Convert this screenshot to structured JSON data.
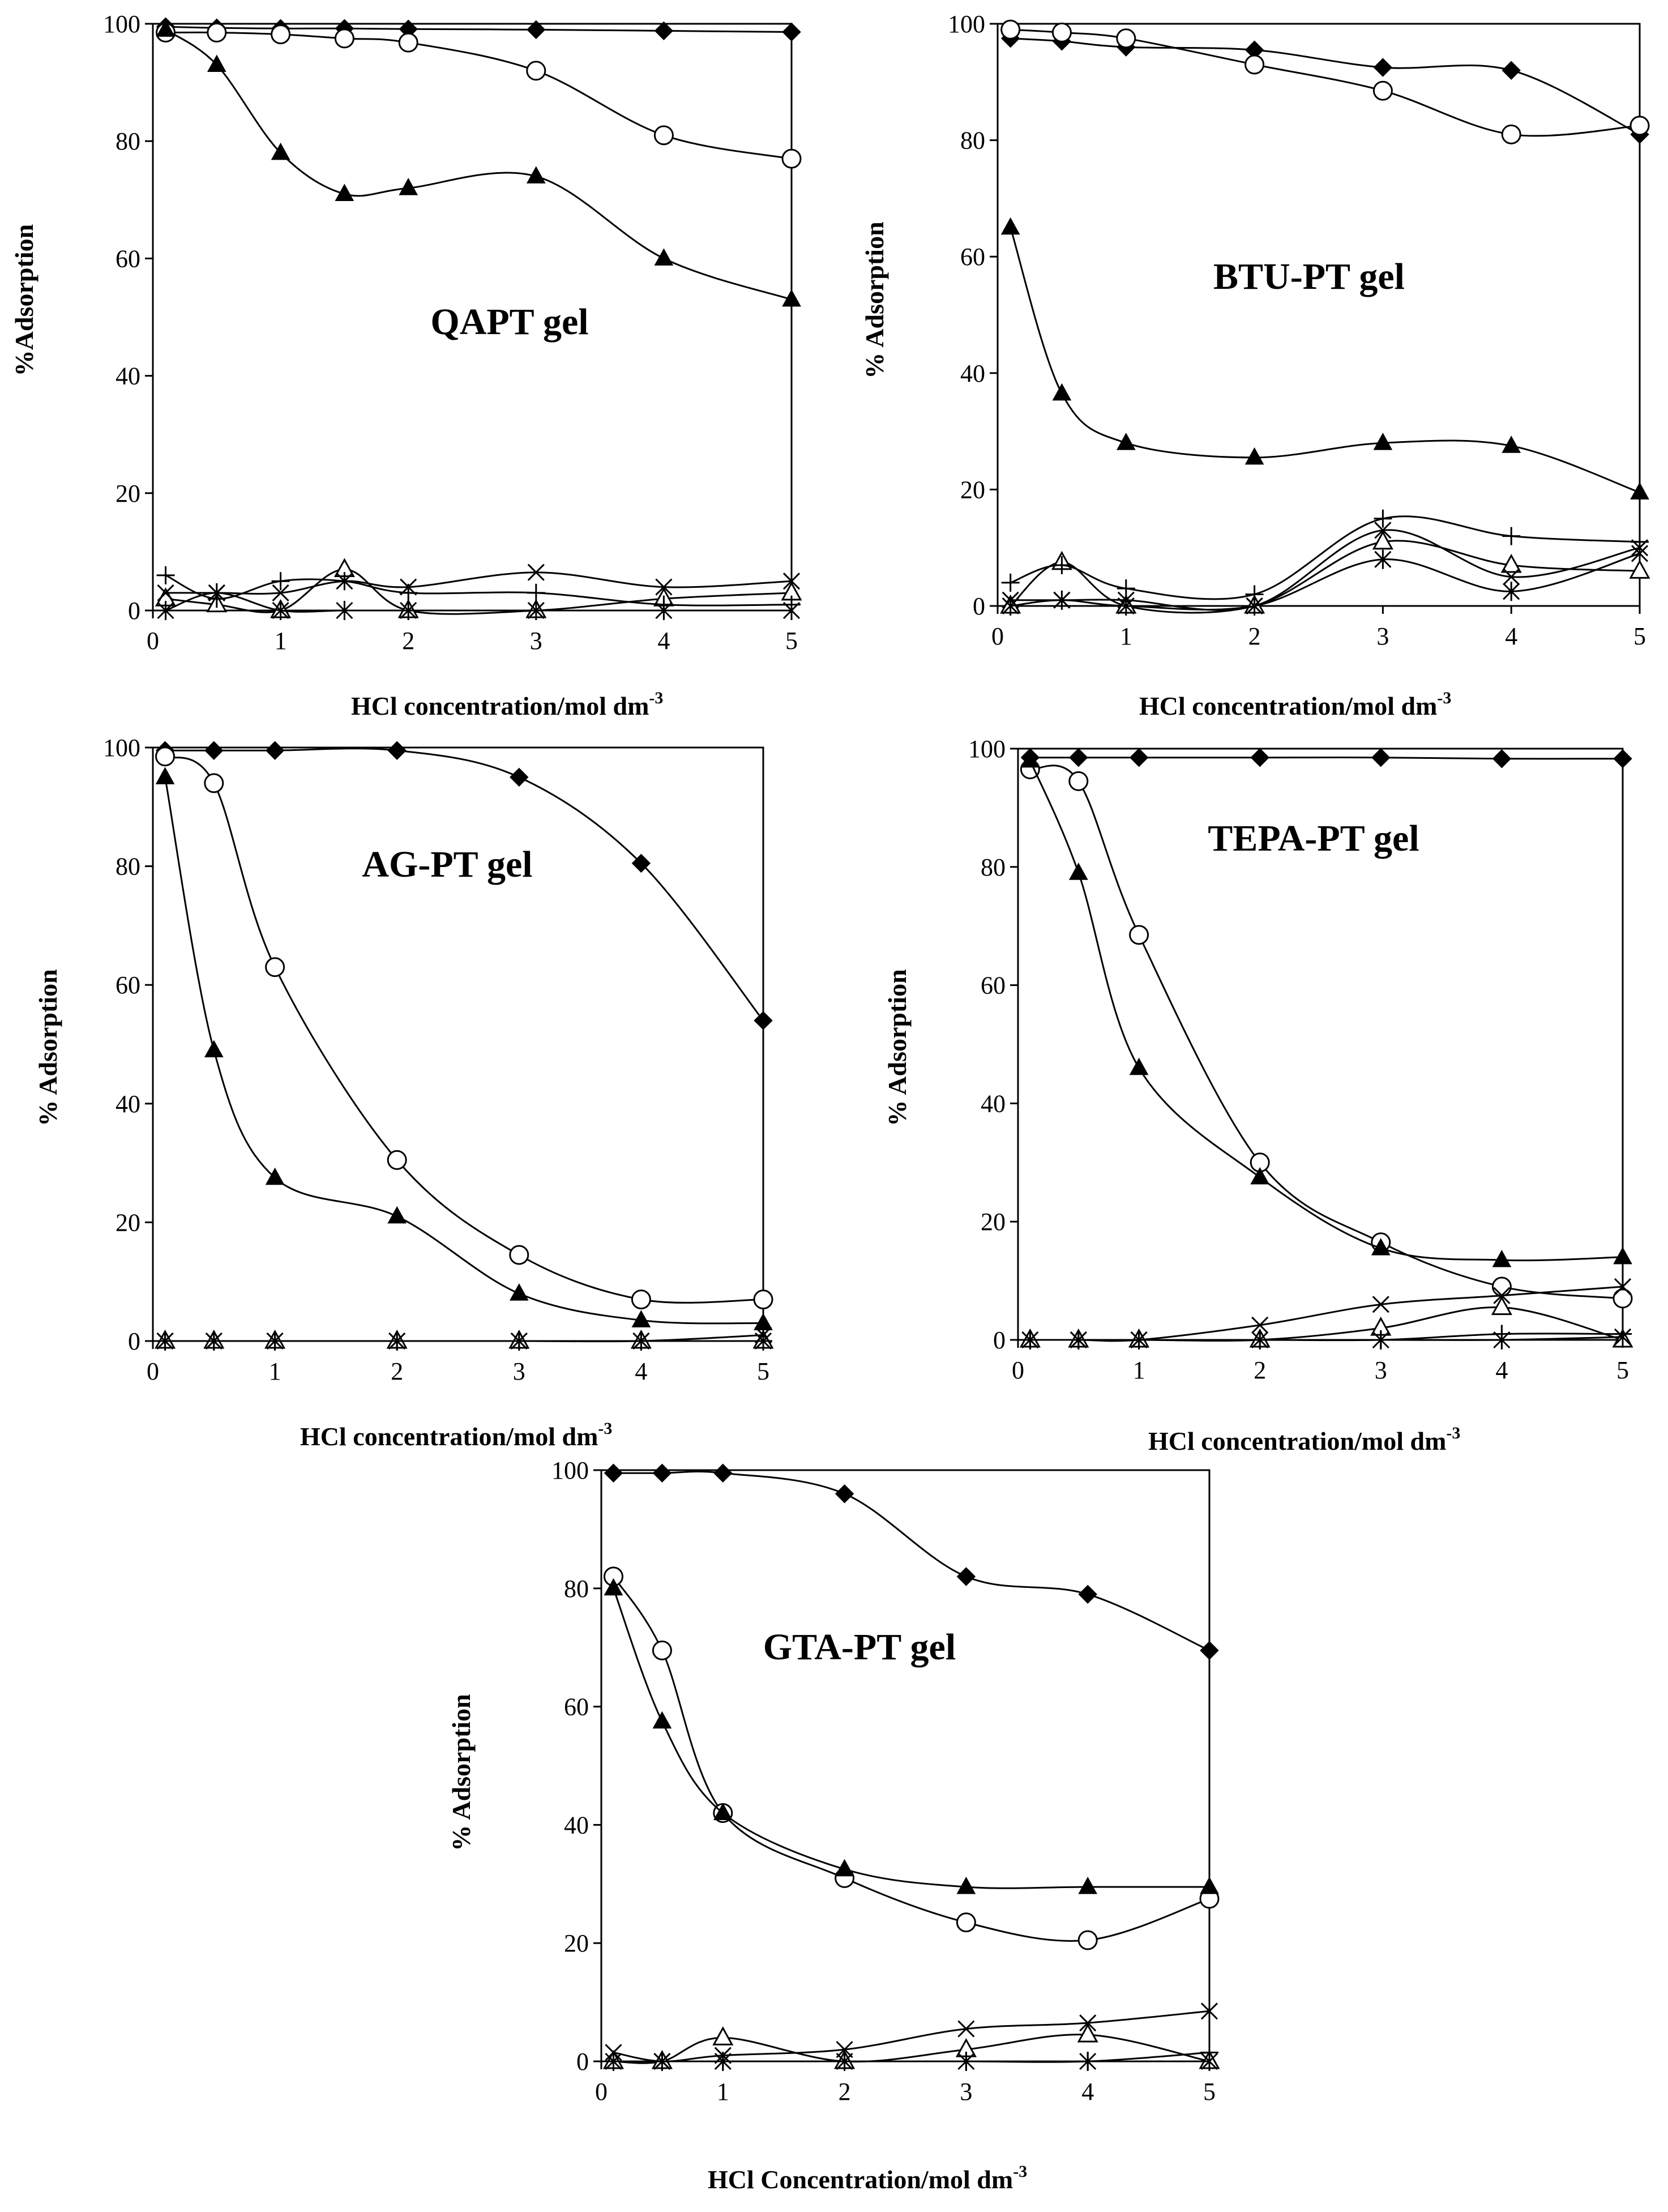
{
  "chart_data": [
    {
      "type": "line",
      "title": "QAPT gel",
      "xlabel": "HCl concentration/mol dm",
      "xlabel_sup": "-3",
      "ylabel": "%Adsorption",
      "xlim": [
        0,
        5
      ],
      "ylim": [
        0,
        100
      ],
      "x_ticks": [
        "0",
        "1",
        "2",
        "3",
        "4",
        "5"
      ],
      "y_ticks": [
        "0",
        "20",
        "40",
        "60",
        "80",
        "100"
      ],
      "x": [
        0.1,
        0.5,
        1,
        1.5,
        2,
        3,
        4,
        5
      ],
      "series": [
        {
          "name": "diamond",
          "marker": "diamond",
          "values": [
            99.5,
            99.3,
            99.2,
            99.2,
            99.1,
            99,
            98.8,
            98.6
          ]
        },
        {
          "name": "circle",
          "marker": "circle",
          "values": [
            98.5,
            98.5,
            98.2,
            97.5,
            96.8,
            92,
            81,
            77
          ]
        },
        {
          "name": "triangle-filled",
          "marker": "triangle-filled",
          "values": [
            99,
            93,
            78,
            71,
            72,
            74,
            60,
            53
          ]
        },
        {
          "name": "triangle-open",
          "marker": "triangle-open",
          "values": [
            2,
            1,
            0,
            7,
            0,
            0,
            2,
            3
          ]
        },
        {
          "name": "cross-x",
          "marker": "cross-x",
          "values": [
            3,
            3,
            3,
            5,
            4,
            6.5,
            4,
            5
          ]
        },
        {
          "name": "plus",
          "marker": "plus",
          "values": [
            6,
            2,
            5,
            5,
            3,
            3,
            1,
            1
          ]
        },
        {
          "name": "star",
          "marker": "star",
          "values": [
            0,
            3,
            0,
            0,
            0,
            0,
            0,
            0
          ]
        }
      ]
    },
    {
      "type": "line",
      "title": "BTU-PT gel",
      "xlabel": "HCl concentration/mol dm",
      "xlabel_sup": "-3",
      "ylabel": "% Adsorption",
      "xlim": [
        0,
        5
      ],
      "ylim": [
        0,
        100
      ],
      "x_ticks": [
        "0",
        "1",
        "2",
        "3",
        "4",
        "5"
      ],
      "y_ticks": [
        "0",
        "20",
        "40",
        "60",
        "80",
        "100"
      ],
      "x": [
        0.1,
        0.5,
        1,
        2,
        3,
        4,
        5
      ],
      "series": [
        {
          "name": "diamond",
          "marker": "diamond",
          "values": [
            97.5,
            97,
            96,
            95.5,
            92.5,
            92,
            81
          ]
        },
        {
          "name": "circle",
          "marker": "circle",
          "values": [
            99,
            98.5,
            97.5,
            93,
            88.5,
            81,
            82.5
          ]
        },
        {
          "name": "triangle-filled",
          "marker": "triangle-filled",
          "values": [
            65,
            36.5,
            28,
            25.5,
            28,
            27.5,
            19.5
          ]
        },
        {
          "name": "triangle-open",
          "marker": "triangle-open",
          "values": [
            0,
            7.5,
            0,
            0,
            11,
            7,
            6
          ]
        },
        {
          "name": "cross-x",
          "marker": "cross-x",
          "values": [
            1,
            1,
            1,
            0,
            13,
            5,
            10
          ]
        },
        {
          "name": "plus",
          "marker": "plus",
          "values": [
            4,
            7,
            3,
            2,
            15,
            12,
            11
          ]
        },
        {
          "name": "star",
          "marker": "star",
          "values": [
            0,
            1,
            0,
            0,
            8,
            2.5,
            9
          ]
        }
      ]
    },
    {
      "type": "line",
      "title": "AG-PT gel",
      "xlabel": "HCl concentration/mol dm",
      "xlabel_sup": "-3",
      "ylabel": "% Adsorption",
      "xlim": [
        0,
        5
      ],
      "ylim": [
        0,
        100
      ],
      "x_ticks": [
        "0",
        "1",
        "2",
        "3",
        "4",
        "5"
      ],
      "y_ticks": [
        "0",
        "20",
        "40",
        "60",
        "80",
        "100"
      ],
      "x": [
        0.1,
        0.5,
        1,
        2,
        3,
        4,
        5
      ],
      "series": [
        {
          "name": "diamond",
          "marker": "diamond",
          "values": [
            99.5,
            99.5,
            99.5,
            99.5,
            95,
            80.5,
            54
          ]
        },
        {
          "name": "circle",
          "marker": "circle",
          "values": [
            98.5,
            94,
            63,
            30.5,
            14.5,
            7,
            7
          ]
        },
        {
          "name": "triangle-filled",
          "marker": "triangle-filled",
          "values": [
            95,
            49,
            27.5,
            21,
            8,
            3.5,
            3
          ]
        },
        {
          "name": "triangle-open",
          "marker": "triangle-open",
          "values": [
            0,
            0,
            0,
            0,
            0,
            0,
            0
          ]
        },
        {
          "name": "cross-x",
          "marker": "cross-x",
          "values": [
            0,
            0,
            0,
            0,
            0,
            0,
            1
          ]
        },
        {
          "name": "plus",
          "marker": "plus",
          "values": [
            0,
            0,
            0,
            0,
            0,
            0,
            0
          ]
        },
        {
          "name": "star",
          "marker": "star",
          "values": [
            0,
            0,
            0,
            0,
            0,
            0,
            0
          ]
        }
      ]
    },
    {
      "type": "line",
      "title": "TEPA-PT gel",
      "xlabel": "HCl concentration/mol dm",
      "xlabel_sup": "-3",
      "ylabel": "% Adsorption",
      "xlim": [
        0,
        5
      ],
      "ylim": [
        0,
        100
      ],
      "x_ticks": [
        "0",
        "1",
        "2",
        "3",
        "4",
        "5"
      ],
      "y_ticks": [
        "0",
        "20",
        "40",
        "60",
        "80",
        "100"
      ],
      "x": [
        0.1,
        0.5,
        1,
        2,
        3,
        4,
        5
      ],
      "series": [
        {
          "name": "diamond",
          "marker": "diamond",
          "values": [
            98.5,
            98.5,
            98.5,
            98.5,
            98.5,
            98.3,
            98.3
          ]
        },
        {
          "name": "circle",
          "marker": "circle",
          "values": [
            96.5,
            94.5,
            68.5,
            30,
            16.5,
            9,
            7
          ]
        },
        {
          "name": "triangle-filled",
          "marker": "triangle-filled",
          "values": [
            98,
            79,
            46,
            27.5,
            15.5,
            13.5,
            14
          ]
        },
        {
          "name": "triangle-open",
          "marker": "triangle-open",
          "values": [
            0,
            0,
            0,
            0,
            2,
            5.5,
            0
          ]
        },
        {
          "name": "cross-x",
          "marker": "cross-x",
          "values": [
            0,
            0,
            0,
            2.5,
            6,
            7.5,
            9
          ]
        },
        {
          "name": "plus",
          "marker": "plus",
          "values": [
            0,
            0,
            0,
            0,
            0,
            1,
            1
          ]
        },
        {
          "name": "star",
          "marker": "star",
          "values": [
            0,
            0,
            0,
            0,
            0,
            0,
            0.5
          ]
        }
      ]
    },
    {
      "type": "line",
      "title": "GTA-PT gel",
      "xlabel": "HCl Concentration/mol dm",
      "xlabel_sup": "-3",
      "ylabel": "% Adsorption",
      "xlim": [
        0,
        5
      ],
      "ylim": [
        0,
        100
      ],
      "x_ticks": [
        "0",
        "1",
        "2",
        "3",
        "4",
        "5"
      ],
      "y_ticks": [
        "0",
        "20",
        "40",
        "60",
        "80",
        "100"
      ],
      "x": [
        0.1,
        0.5,
        1,
        2,
        3,
        4,
        5
      ],
      "series": [
        {
          "name": "diamond",
          "marker": "diamond",
          "values": [
            99.5,
            99.5,
            99.5,
            96,
            82,
            79,
            69.5
          ]
        },
        {
          "name": "circle",
          "marker": "circle",
          "values": [
            82,
            69.5,
            42,
            31,
            23.5,
            20.5,
            27.5
          ]
        },
        {
          "name": "triangle-filled",
          "marker": "triangle-filled",
          "values": [
            80,
            57.5,
            42,
            32.5,
            29.5,
            29.5,
            29.5
          ]
        },
        {
          "name": "triangle-open",
          "marker": "triangle-open",
          "values": [
            0,
            0,
            4,
            0,
            2,
            4.5,
            0
          ]
        },
        {
          "name": "cross-x",
          "marker": "cross-x",
          "values": [
            1.5,
            0,
            1,
            2,
            5.5,
            6.5,
            8.5
          ]
        },
        {
          "name": "plus",
          "marker": "plus",
          "values": [
            0,
            0,
            0,
            0,
            0,
            0,
            1.5
          ]
        },
        {
          "name": "star",
          "marker": "star",
          "values": [
            0,
            0,
            0,
            0,
            0,
            0,
            0
          ]
        }
      ]
    }
  ]
}
